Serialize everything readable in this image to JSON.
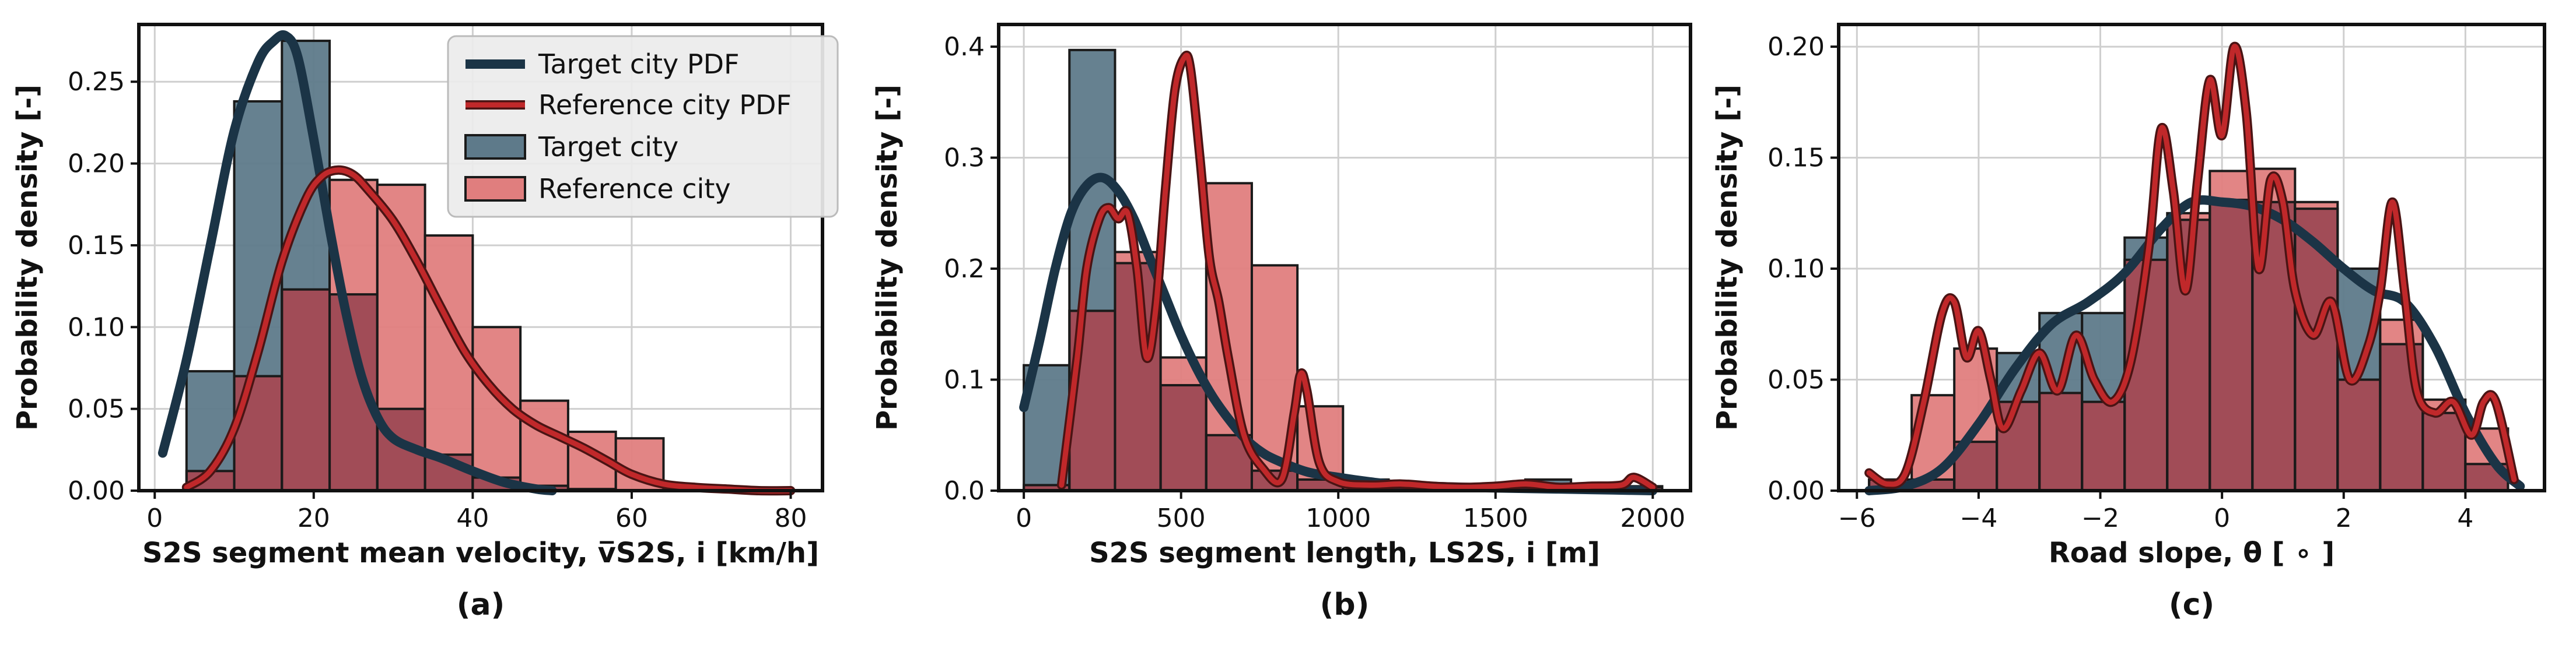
{
  "colors": {
    "target_bar": "#5e7a8a",
    "target_line": "#1b3446",
    "reference_bar": "#e07e7e",
    "reference_line": "#c0282a",
    "overlap_bar": "#a14c57",
    "bar_edge": "#1a1a1a",
    "legend_bg": "#ececec"
  },
  "legend": {
    "entries": [
      "Target city PDF",
      "Reference city PDF",
      "Target city",
      "Reference city"
    ],
    "placement": "top-right"
  },
  "chart_data": [
    {
      "type": "bar",
      "caption": "(a)",
      "xlabel": "S2S segment mean velocity, v̅S2S, i [km/h]",
      "ylabel": "Probability density [-]",
      "xlim": [
        -2,
        84
      ],
      "ylim": [
        0,
        0.285
      ],
      "xticks": [
        "0",
        "20",
        "40",
        "60",
        "80"
      ],
      "xtick_values": [
        0,
        20,
        40,
        60,
        80
      ],
      "yticks": [
        "0.00",
        "0.05",
        "0.10",
        "0.15",
        "0.20",
        "0.25"
      ],
      "ytick_values": [
        0,
        0.05,
        0.1,
        0.15,
        0.2,
        0.25
      ],
      "grid": true,
      "bin_edges": [
        4,
        10,
        16,
        22,
        28,
        34,
        40,
        46,
        52,
        58,
        64
      ],
      "target_hist": [
        0.073,
        0.238,
        0.275,
        0.12,
        0.05,
        0.022,
        0.008,
        0.003,
        0.001,
        0.0
      ],
      "reference_hist": [
        0.012,
        0.07,
        0.123,
        0.19,
        0.187,
        0.156,
        0.1,
        0.055,
        0.036,
        0.032
      ],
      "target_pdf": {
        "x": [
          1,
          4,
          7,
          10,
          13,
          15,
          16.5,
          18,
          20,
          22,
          24,
          26,
          28,
          30,
          33,
          36,
          40,
          44,
          48,
          50
        ],
        "y": [
          0.023,
          0.08,
          0.15,
          0.22,
          0.262,
          0.275,
          0.278,
          0.265,
          0.215,
          0.16,
          0.11,
          0.07,
          0.045,
          0.032,
          0.025,
          0.02,
          0.012,
          0.005,
          0.001,
          0.0
        ]
      },
      "reference_pdf": {
        "x": [
          4,
          7,
          10,
          13,
          16,
          19,
          21,
          23,
          25,
          27,
          30,
          33,
          36,
          39,
          42,
          45,
          48,
          51,
          54,
          57,
          60,
          64,
          68,
          72,
          76,
          80
        ],
        "y": [
          0.002,
          0.012,
          0.038,
          0.085,
          0.14,
          0.178,
          0.192,
          0.196,
          0.193,
          0.183,
          0.165,
          0.14,
          0.112,
          0.085,
          0.065,
          0.05,
          0.04,
          0.033,
          0.026,
          0.018,
          0.01,
          0.004,
          0.002,
          0.001,
          0.0,
          0.0
        ]
      }
    },
    {
      "type": "bar",
      "caption": "(b)",
      "xlabel": "S2S segment length, LS2S, i [m]",
      "ylabel": "Probability density [-]",
      "xlim": [
        -80,
        2120
      ],
      "ylim": [
        0,
        0.42
      ],
      "xticks": [
        "0",
        "500",
        "1000",
        "1500",
        "2000"
      ],
      "xtick_values": [
        0,
        500,
        1000,
        1500,
        2000
      ],
      "yticks": [
        "0.0",
        "0.1",
        "0.2",
        "0.3",
        "0.4"
      ],
      "ytick_values": [
        0,
        0.1,
        0.2,
        0.3,
        0.4
      ],
      "grid": true,
      "bin_edges": [
        0,
        145,
        290,
        435,
        580,
        725,
        870,
        1015,
        1160,
        1305,
        1450,
        1595,
        1740,
        1885,
        2030
      ],
      "target_hist": [
        0.113,
        0.397,
        0.205,
        0.095,
        0.05,
        0.018,
        0.01,
        0.005,
        0.003,
        0.002,
        0.003,
        0.01,
        0.002,
        0.003
      ],
      "reference_hist": [
        0.005,
        0.162,
        0.215,
        0.12,
        0.277,
        0.203,
        0.076,
        0.01,
        0.005,
        0.002,
        0.001,
        0.004,
        0.002,
        0.004
      ],
      "target_pdf": {
        "x": [
          0,
          50,
          100,
          150,
          200,
          250,
          300,
          350,
          400,
          450,
          500,
          550,
          600,
          650,
          700,
          750,
          800,
          900,
          1000,
          1100,
          1200,
          1400,
          1600,
          1800,
          2000
        ],
        "y": [
          0.075,
          0.135,
          0.2,
          0.25,
          0.275,
          0.282,
          0.27,
          0.245,
          0.21,
          0.175,
          0.14,
          0.11,
          0.085,
          0.065,
          0.048,
          0.036,
          0.028,
          0.017,
          0.012,
          0.008,
          0.005,
          0.003,
          0.002,
          0.001,
          0.0
        ]
      },
      "reference_pdf": {
        "x": [
          120,
          170,
          200,
          240,
          270,
          300,
          330,
          360,
          390,
          420,
          450,
          480,
          510,
          530,
          560,
          590,
          620,
          650,
          700,
          760,
          820,
          860,
          880,
          900,
          940,
          1000,
          1100,
          1200,
          1300,
          1400,
          1500,
          1600,
          1700,
          1800,
          1900,
          1940,
          2000
        ],
        "y": [
          0.005,
          0.12,
          0.2,
          0.245,
          0.255,
          0.245,
          0.25,
          0.2,
          0.12,
          0.165,
          0.27,
          0.36,
          0.39,
          0.38,
          0.3,
          0.21,
          0.17,
          0.12,
          0.05,
          0.02,
          0.01,
          0.07,
          0.105,
          0.09,
          0.025,
          0.008,
          0.005,
          0.006,
          0.004,
          0.003,
          0.004,
          0.006,
          0.003,
          0.004,
          0.005,
          0.012,
          0.003
        ]
      }
    },
    {
      "type": "bar",
      "caption": "(c)",
      "xlabel": "Road slope, θ [ ∘ ]",
      "ylabel": "Probability density [-]",
      "xlim": [
        -6.3,
        5.3
      ],
      "ylim": [
        0,
        0.21
      ],
      "xticks": [
        "−6",
        "−4",
        "−2",
        "0",
        "2",
        "4"
      ],
      "xtick_values": [
        -6,
        -4,
        -2,
        0,
        2,
        4
      ],
      "yticks": [
        "0.00",
        "0.05",
        "0.10",
        "0.15",
        "0.20"
      ],
      "ytick_values": [
        0,
        0.05,
        0.1,
        0.15,
        0.2
      ],
      "grid": true,
      "bin_edges": [
        -5.8,
        -5.1,
        -4.4,
        -3.7,
        -3.0,
        -2.3,
        -1.6,
        -0.9,
        -0.2,
        0.5,
        1.2,
        1.9,
        2.6,
        3.3,
        4.0,
        4.7
      ],
      "target_hist": [
        0.005,
        0.005,
        0.022,
        0.062,
        0.08,
        0.08,
        0.114,
        0.122,
        0.131,
        0.13,
        0.127,
        0.1,
        0.066,
        0.035,
        0.012
      ],
      "reference_hist": [
        0.005,
        0.043,
        0.064,
        0.04,
        0.044,
        0.04,
        0.104,
        0.125,
        0.144,
        0.145,
        0.13,
        0.05,
        0.077,
        0.041,
        0.028
      ],
      "target_pdf": {
        "x": [
          -5.8,
          -5.2,
          -4.6,
          -4.0,
          -3.4,
          -2.8,
          -2.2,
          -1.6,
          -1.0,
          -0.5,
          0.0,
          0.5,
          1.0,
          1.5,
          2.0,
          2.5,
          3.0,
          3.5,
          4.0,
          4.5,
          4.9
        ],
        "y": [
          0.0,
          0.002,
          0.01,
          0.03,
          0.055,
          0.075,
          0.085,
          0.098,
          0.118,
          0.13,
          0.13,
          0.128,
          0.122,
          0.112,
          0.1,
          0.09,
          0.085,
          0.065,
          0.035,
          0.012,
          0.002
        ]
      },
      "reference_pdf": {
        "x": [
          -5.8,
          -5.5,
          -5.2,
          -4.9,
          -4.6,
          -4.4,
          -4.2,
          -4.0,
          -3.8,
          -3.6,
          -3.3,
          -3.0,
          -2.7,
          -2.4,
          -2.1,
          -1.8,
          -1.5,
          -1.2,
          -1.0,
          -0.8,
          -0.6,
          -0.4,
          -0.2,
          0.0,
          0.2,
          0.4,
          0.6,
          0.8,
          1.0,
          1.2,
          1.5,
          1.8,
          2.1,
          2.4,
          2.6,
          2.8,
          3.0,
          3.2,
          3.5,
          3.8,
          4.1,
          4.3,
          4.5,
          4.8
        ],
        "y": [
          0.008,
          0.003,
          0.008,
          0.04,
          0.08,
          0.085,
          0.06,
          0.072,
          0.05,
          0.028,
          0.045,
          0.062,
          0.045,
          0.07,
          0.05,
          0.04,
          0.058,
          0.11,
          0.163,
          0.135,
          0.09,
          0.14,
          0.185,
          0.16,
          0.2,
          0.17,
          0.1,
          0.14,
          0.13,
          0.09,
          0.07,
          0.085,
          0.05,
          0.065,
          0.09,
          0.13,
          0.09,
          0.045,
          0.035,
          0.04,
          0.025,
          0.04,
          0.04,
          0.005
        ]
      }
    }
  ]
}
